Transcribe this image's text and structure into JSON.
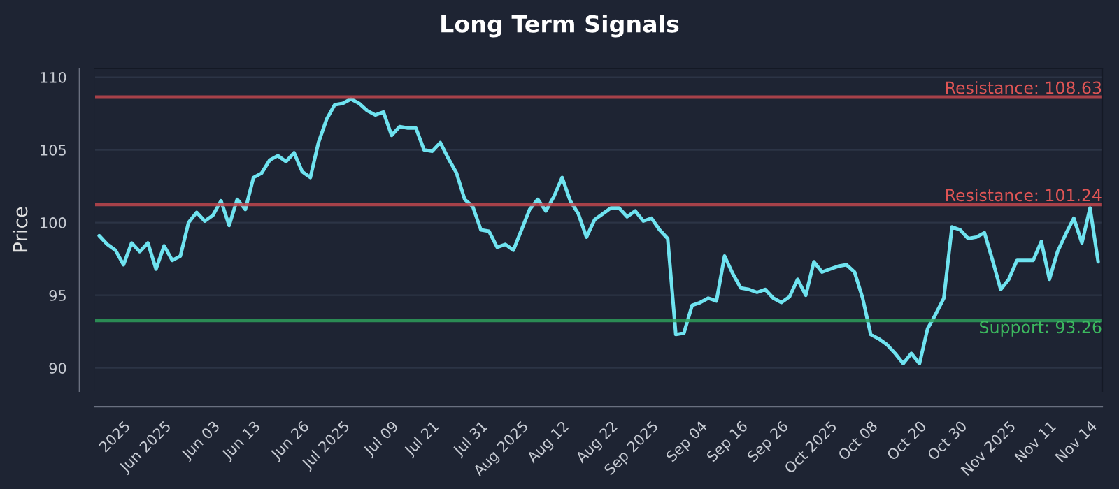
{
  "chart_data": {
    "type": "line",
    "title": "Long Term Signals",
    "ylabel": "Price",
    "categories": [
      null,
      null,
      null,
      "2025",
      null,
      null,
      null,
      null,
      "Jun 2025",
      null,
      null,
      null,
      null,
      null,
      "Jun 03",
      null,
      null,
      null,
      null,
      "Jun 13",
      null,
      null,
      null,
      null,
      null,
      "Jun 26",
      null,
      null,
      null,
      null,
      "Jul 2025",
      null,
      null,
      null,
      null,
      null,
      "Jul 09",
      null,
      null,
      null,
      null,
      "Jul 21",
      null,
      null,
      null,
      null,
      null,
      "Jul 31",
      null,
      null,
      null,
      null,
      "Aug 2025",
      null,
      null,
      null,
      null,
      "Aug 12",
      null,
      null,
      null,
      null,
      null,
      "Aug 22",
      null,
      null,
      null,
      null,
      "Sep 2025",
      null,
      null,
      null,
      null,
      null,
      "Sep 04",
      null,
      null,
      null,
      null,
      "Sep 16",
      null,
      null,
      null,
      null,
      "Sep 26",
      null,
      null,
      null,
      null,
      null,
      "Oct 2025",
      null,
      null,
      null,
      null,
      "Oct 08",
      null,
      null,
      null,
      null,
      null,
      "Oct 20",
      null,
      null,
      null,
      null,
      "Oct 30",
      null,
      null,
      null,
      null,
      null,
      "Nov 2025",
      null,
      null,
      null,
      null,
      "Nov 11",
      null,
      null,
      null,
      null,
      "Nov 14",
      null
    ],
    "series": [
      {
        "color": "#6fe3f0",
        "values": [
          99.1,
          98.5,
          98.1,
          97.1,
          98.6,
          98.0,
          98.6,
          96.8,
          98.4,
          97.4,
          97.7,
          100.0,
          100.7,
          100.1,
          100.5,
          101.5,
          99.8,
          101.6,
          100.9,
          103.1,
          103.4,
          104.3,
          104.6,
          104.2,
          104.8,
          103.5,
          103.1,
          105.5,
          107.1,
          108.1,
          108.2,
          108.5,
          108.2,
          107.7,
          107.4,
          107.6,
          106.0,
          106.6,
          106.5,
          106.5,
          105.0,
          104.9,
          105.5,
          104.4,
          103.4,
          101.6,
          101.1,
          99.5,
          99.4,
          98.3,
          98.5,
          98.1,
          99.5,
          100.9,
          101.6,
          100.8,
          101.8,
          103.1,
          101.5,
          100.6,
          99.0,
          100.2,
          100.6,
          101.0,
          101.0,
          100.4,
          100.8,
          100.1,
          100.3,
          99.5,
          98.9,
          92.3,
          92.4,
          94.3,
          94.5,
          94.8,
          94.6,
          97.7,
          96.5,
          95.5,
          95.4,
          95.2,
          95.4,
          94.8,
          94.5,
          94.9,
          96.1,
          95.0,
          97.3,
          96.6,
          96.8,
          97.0,
          97.1,
          96.6,
          94.8,
          92.3,
          92.0,
          91.6,
          91.0,
          90.3,
          91.0,
          90.3,
          92.7,
          93.7,
          94.8,
          99.7,
          99.5,
          98.9,
          99.0,
          99.3,
          97.4,
          95.4,
          96.1,
          97.4,
          97.4,
          97.4,
          98.7,
          96.1,
          98.0,
          99.2,
          100.3,
          98.6,
          101.0,
          97.3
        ]
      }
    ],
    "ylim": [
      88.4,
      110.6
    ],
    "yticks": [
      90,
      95,
      100,
      105,
      110
    ],
    "grid": "y",
    "ref_lines": [
      {
        "axis": "y",
        "value": 108.63,
        "label": "Resistance: 108.63",
        "color": "#c0474d"
      },
      {
        "axis": "y",
        "value": 101.24,
        "label": "Resistance: 101.24",
        "color": "#c0474d"
      },
      {
        "axis": "y",
        "value": 93.26,
        "label": "Support: 93.26",
        "color": "#2e9e5a"
      }
    ]
  }
}
